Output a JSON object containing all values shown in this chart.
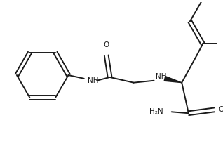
{
  "background_color": "#ffffff",
  "line_color": "#1a1a1a",
  "line_width": 1.4,
  "text_color": "#1a1a1a",
  "figsize": [
    3.18,
    2.15
  ],
  "dpi": 100,
  "xlim": [
    0,
    318
  ],
  "ylim": [
    0,
    215
  ]
}
